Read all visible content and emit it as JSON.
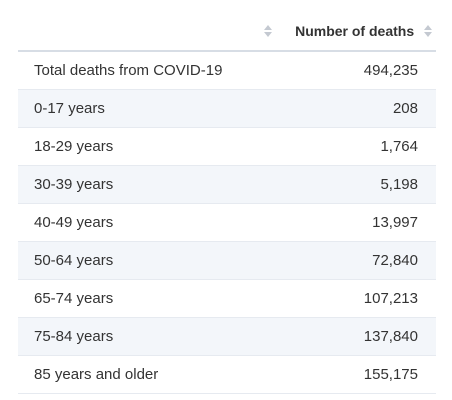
{
  "table": {
    "header": {
      "label": "",
      "value": "Number of deaths",
      "sort_icon": "sort-up-down-icon"
    },
    "rows": [
      {
        "label": "Total deaths from COVID-19",
        "value": "494,235"
      },
      {
        "label": "0-17 years",
        "value": "208"
      },
      {
        "label": "18-29 years",
        "value": "1,764"
      },
      {
        "label": "30-39 years",
        "value": "5,198"
      },
      {
        "label": "40-49 years",
        "value": "13,997"
      },
      {
        "label": "50-64 years",
        "value": "72,840"
      },
      {
        "label": "65-74 years",
        "value": "107,213"
      },
      {
        "label": "75-84 years",
        "value": "137,840"
      },
      {
        "label": "85 years and older",
        "value": "155,175"
      }
    ],
    "colors": {
      "row_alt": "#f3f6fa",
      "border": "#e6eaf0",
      "header_border": "#d7dde5",
      "sort_icon": "#c4c9d1"
    }
  },
  "chart_data": {
    "type": "table",
    "columns": [
      "",
      "Number of deaths"
    ],
    "categories": [
      "Total deaths from COVID-19",
      "0-17 years",
      "18-29 years",
      "30-39 years",
      "40-49 years",
      "50-64 years",
      "65-74 years",
      "75-84 years",
      "85 years and older"
    ],
    "values": [
      494235,
      208,
      1764,
      5198,
      13997,
      72840,
      107213,
      137840,
      155175
    ]
  }
}
